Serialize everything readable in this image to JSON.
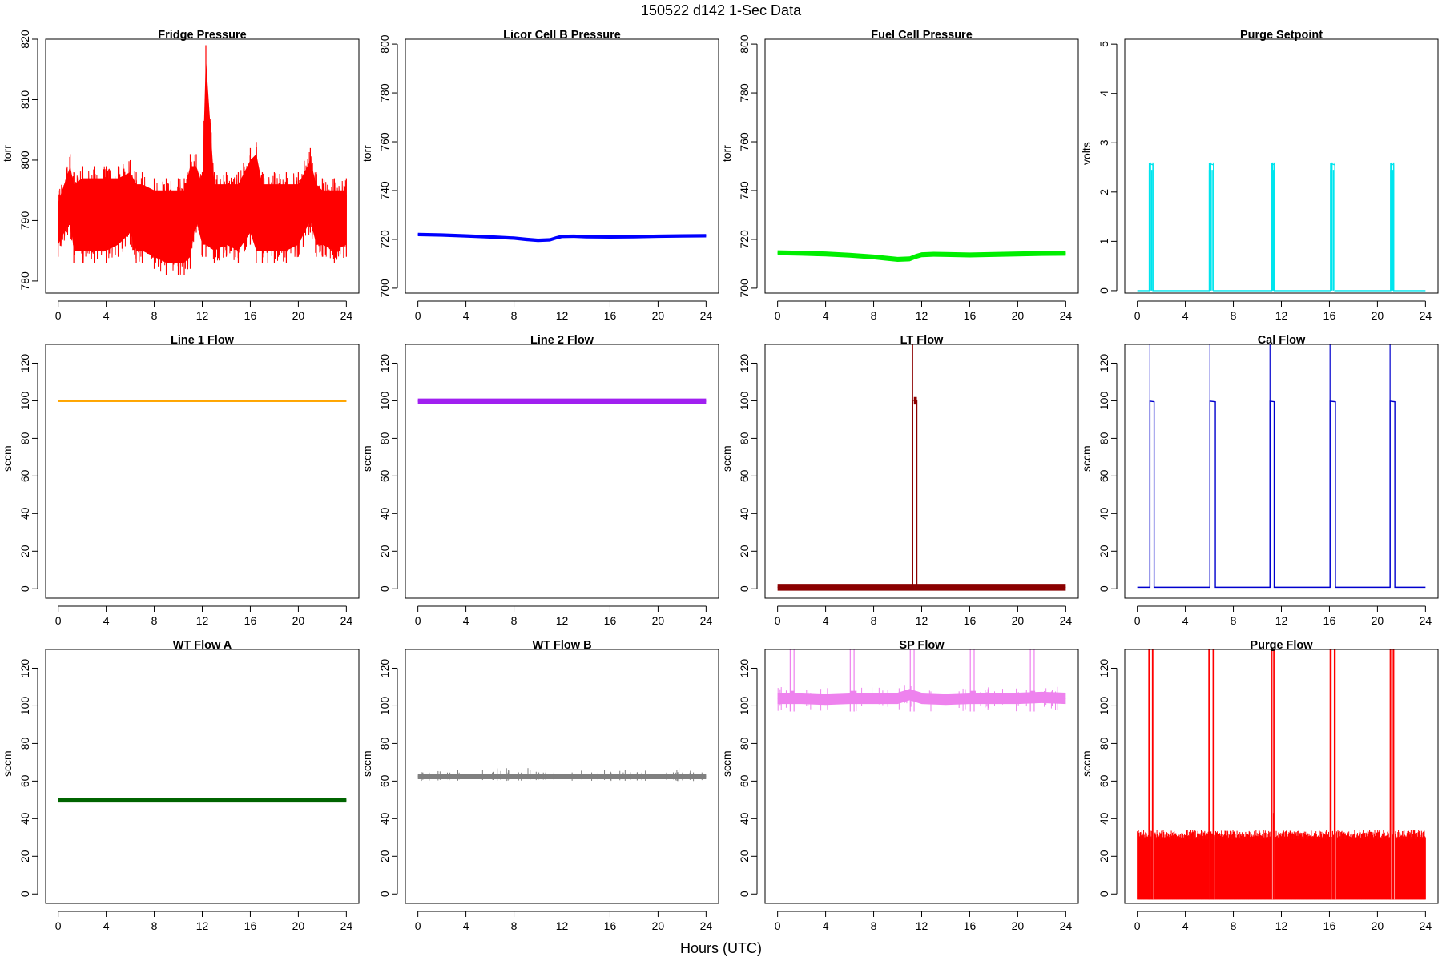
{
  "figure": {
    "suptitle": "150522   d142   1-Sec Data",
    "xlabel": "Hours (UTC)"
  },
  "chart_data": [
    {
      "type": "line",
      "title": "Fridge Pressure",
      "ylabel": "torr",
      "color": "#ff0000",
      "xlim": [
        0,
        24
      ],
      "ylim": [
        778,
        820
      ],
      "yticks": [
        780,
        790,
        800,
        810,
        820
      ],
      "xticks": [
        0,
        4,
        8,
        12,
        16,
        20,
        24
      ],
      "x": [
        0,
        1,
        1.3,
        2,
        3,
        4,
        5,
        6,
        6.5,
        7,
        8,
        9,
        10,
        10.5,
        11,
        11.5,
        12,
        12.3,
        13,
        14,
        15,
        16,
        16.5,
        17,
        18,
        19,
        20,
        21,
        21.5,
        22,
        23,
        24
      ],
      "series": [
        {
          "values": [
            790,
            791,
            790,
            790,
            791,
            790,
            790,
            791,
            790,
            790,
            790,
            789,
            789,
            789,
            789,
            790,
            790,
            790,
            790,
            790,
            790,
            791,
            790,
            790,
            790,
            790,
            790,
            791,
            790,
            790,
            790,
            790
          ]
        }
      ],
      "band_low": [
        784,
        788,
        783,
        783,
        783,
        783,
        784,
        786,
        783,
        783,
        782,
        781,
        781,
        781,
        782,
        788,
        784,
        784,
        783,
        784,
        783,
        786,
        783,
        783,
        783,
        783,
        784,
        788,
        784,
        784,
        783,
        784
      ],
      "band_high": [
        795,
        801,
        798,
        799,
        799,
        799,
        799,
        800,
        798,
        798,
        797,
        797,
        797,
        797,
        801,
        801,
        798,
        819,
        798,
        798,
        798,
        802,
        803,
        798,
        798,
        798,
        798,
        802,
        798,
        797,
        797,
        797
      ]
    },
    {
      "type": "line",
      "title": "Licor Cell B Pressure",
      "ylabel": "torr",
      "color": "#0000ff",
      "xlim": [
        0,
        24
      ],
      "ylim": [
        698,
        802
      ],
      "yticks": [
        700,
        720,
        740,
        760,
        780,
        800
      ],
      "xticks": [
        0,
        4,
        8,
        12,
        16,
        20,
        24
      ],
      "x": [
        0,
        2,
        4,
        6,
        8,
        9,
        10,
        11,
        11.5,
        12,
        13,
        14,
        16,
        18,
        20,
        22,
        24
      ],
      "series": [
        {
          "values": [
            722,
            721.8,
            721.4,
            721,
            720.5,
            720,
            719.6,
            719.8,
            720.6,
            721.2,
            721.3,
            721.1,
            721,
            721.1,
            721.3,
            721.4,
            721.5
          ]
        }
      ],
      "band": 0.7
    },
    {
      "type": "line",
      "title": "Fuel Cell Pressure",
      "ylabel": "torr",
      "color": "#00ee00",
      "xlim": [
        0,
        24
      ],
      "ylim": [
        698,
        802
      ],
      "yticks": [
        700,
        720,
        740,
        760,
        780,
        800
      ],
      "xticks": [
        0,
        4,
        8,
        12,
        16,
        20,
        24
      ],
      "x": [
        0,
        2,
        4,
        6,
        8,
        9,
        10,
        11,
        11.5,
        12,
        13,
        14,
        16,
        18,
        20,
        22,
        24
      ],
      "series": [
        {
          "values": [
            714.5,
            714.3,
            714,
            713.5,
            712.8,
            712.3,
            711.8,
            712,
            713,
            713.7,
            713.9,
            713.8,
            713.6,
            713.8,
            714,
            714.2,
            714.3
          ]
        }
      ],
      "band": 1.0
    },
    {
      "type": "pulse",
      "title": "Purge Setpoint",
      "ylabel": "volts",
      "color": "#00e5ee",
      "xlim": [
        0,
        24
      ],
      "ylim": [
        -0.05,
        5.1
      ],
      "yticks": [
        0,
        1,
        2,
        3,
        4,
        5
      ],
      "xticks": [
        0,
        4,
        8,
        12,
        16,
        20,
        24
      ],
      "baseline": 0,
      "pulses": [
        {
          "start": 1.0,
          "end": 1.3,
          "value": 2.55
        },
        {
          "start": 6.0,
          "end": 6.35,
          "value": 2.55
        },
        {
          "start": 11.2,
          "end": 11.4,
          "value": 2.55
        },
        {
          "start": 16.1,
          "end": 16.45,
          "value": 2.55
        },
        {
          "start": 21.1,
          "end": 21.35,
          "value": 2.55
        }
      ]
    },
    {
      "type": "line",
      "title": "Line 1 Flow",
      "ylabel": "sccm",
      "color": "#ffa500",
      "xlim": [
        0,
        24
      ],
      "ylim": [
        -5,
        130
      ],
      "yticks": [
        0,
        20,
        40,
        60,
        80,
        100,
        120
      ],
      "xticks": [
        0,
        4,
        8,
        12,
        16,
        20,
        24
      ],
      "x": [
        0,
        24
      ],
      "series": [
        {
          "values": [
            99.8,
            99.8
          ]
        }
      ],
      "band": 0.4
    },
    {
      "type": "line",
      "title": "Line 2 Flow",
      "ylabel": "sccm",
      "color": "#a020f0",
      "xlim": [
        0,
        24
      ],
      "ylim": [
        -5,
        130
      ],
      "yticks": [
        0,
        20,
        40,
        60,
        80,
        100,
        120
      ],
      "xticks": [
        0,
        4,
        8,
        12,
        16,
        20,
        24
      ],
      "x": [
        0,
        24
      ],
      "series": [
        {
          "values": [
            99.8,
            99.8
          ]
        }
      ],
      "band": 1.4
    },
    {
      "type": "pulse",
      "title": "LT Flow",
      "ylabel": "sccm",
      "color": "#8b0000",
      "xlim": [
        0,
        24
      ],
      "ylim": [
        -5,
        130
      ],
      "yticks": [
        0,
        20,
        40,
        60,
        80,
        100,
        120
      ],
      "xticks": [
        0,
        4,
        8,
        12,
        16,
        20,
        24
      ],
      "baseline": 0.8,
      "band": 1.8,
      "spike": {
        "x": 11.25,
        "value": 130
      },
      "pulses": [
        {
          "start": 11.25,
          "end": 11.6,
          "value": 100
        }
      ]
    },
    {
      "type": "pulse",
      "title": "Cal Flow",
      "ylabel": "sccm",
      "color": "#0000cd",
      "xlim": [
        0,
        24
      ],
      "ylim": [
        -5,
        130
      ],
      "yticks": [
        0,
        20,
        40,
        60,
        80,
        100,
        120
      ],
      "xticks": [
        0,
        4,
        8,
        12,
        16,
        20,
        24
      ],
      "baseline": 0.8,
      "spikes": [
        1.05,
        6.05,
        11.05,
        16.05,
        21.05
      ],
      "pulses": [
        {
          "start": 1.05,
          "end": 1.4,
          "value": 99.5
        },
        {
          "start": 6.05,
          "end": 6.5,
          "value": 99.5
        },
        {
          "start": 11.05,
          "end": 11.4,
          "value": 99.5
        },
        {
          "start": 16.05,
          "end": 16.5,
          "value": 99.5
        },
        {
          "start": 21.05,
          "end": 21.45,
          "value": 99.5
        }
      ]
    },
    {
      "type": "line",
      "title": "WT Flow A",
      "ylabel": "sccm",
      "color": "#006400",
      "xlim": [
        0,
        24
      ],
      "ylim": [
        -5,
        130
      ],
      "yticks": [
        0,
        20,
        40,
        60,
        80,
        100,
        120
      ],
      "xticks": [
        0,
        4,
        8,
        12,
        16,
        20,
        24
      ],
      "x": [
        0,
        24
      ],
      "series": [
        {
          "values": [
            49.8,
            49.8
          ]
        }
      ],
      "band": 1.2
    },
    {
      "type": "line",
      "title": "WT Flow B",
      "ylabel": "sccm",
      "color": "#808080",
      "xlim": [
        0,
        24
      ],
      "ylim": [
        -5,
        130
      ],
      "yticks": [
        0,
        20,
        40,
        60,
        80,
        100,
        120
      ],
      "xticks": [
        0,
        4,
        8,
        12,
        16,
        20,
        24
      ],
      "x": [
        0,
        24
      ],
      "series": [
        {
          "values": [
            62.5,
            62.5
          ]
        }
      ],
      "band": 1.5,
      "spikes_up": [
        64.5,
        67
      ]
    },
    {
      "type": "line",
      "title": "SP Flow",
      "ylabel": "sccm",
      "color": "#ee82ee",
      "xlim": [
        0,
        24
      ],
      "ylim": [
        -5,
        130
      ],
      "yticks": [
        0,
        20,
        40,
        60,
        80,
        100,
        120
      ],
      "xticks": [
        0,
        4,
        8,
        12,
        16,
        20,
        24
      ],
      "x": [
        0,
        2,
        4,
        6,
        8,
        10,
        11,
        12,
        14,
        16,
        18,
        20,
        22,
        24
      ],
      "series": [
        {
          "values": [
            104,
            104,
            103.5,
            104,
            104,
            104,
            106,
            104,
            103.5,
            104,
            104,
            104,
            104.5,
            104
          ]
        }
      ],
      "band": 3,
      "spikes": [
        1.05,
        6.05,
        11.05,
        16.05,
        21.05
      ],
      "pulses": [
        {
          "start": 1.05,
          "end": 1.4,
          "value": 106
        },
        {
          "start": 6.05,
          "end": 6.5,
          "value": 106
        },
        {
          "start": 11.05,
          "end": 11.4,
          "value": 106
        },
        {
          "start": 16.05,
          "end": 16.5,
          "value": 106
        },
        {
          "start": 21.05,
          "end": 21.45,
          "value": 106
        }
      ]
    },
    {
      "type": "pulse",
      "title": "Purge Flow",
      "ylabel": "sccm",
      "color": "#ff0000",
      "xlim": [
        0,
        24
      ],
      "ylim": [
        -5,
        130
      ],
      "yticks": [
        0,
        20,
        40,
        60,
        80,
        100,
        120
      ],
      "xticks": [
        0,
        4,
        8,
        12,
        16,
        20,
        24
      ],
      "baseline": -3,
      "noise_high": 31,
      "bump": {
        "x": 11.3,
        "value": 43
      },
      "spikes": [
        1.0,
        1.3,
        6.0,
        6.35,
        11.2,
        11.4,
        16.1,
        16.45,
        21.1,
        21.35
      ]
    }
  ]
}
